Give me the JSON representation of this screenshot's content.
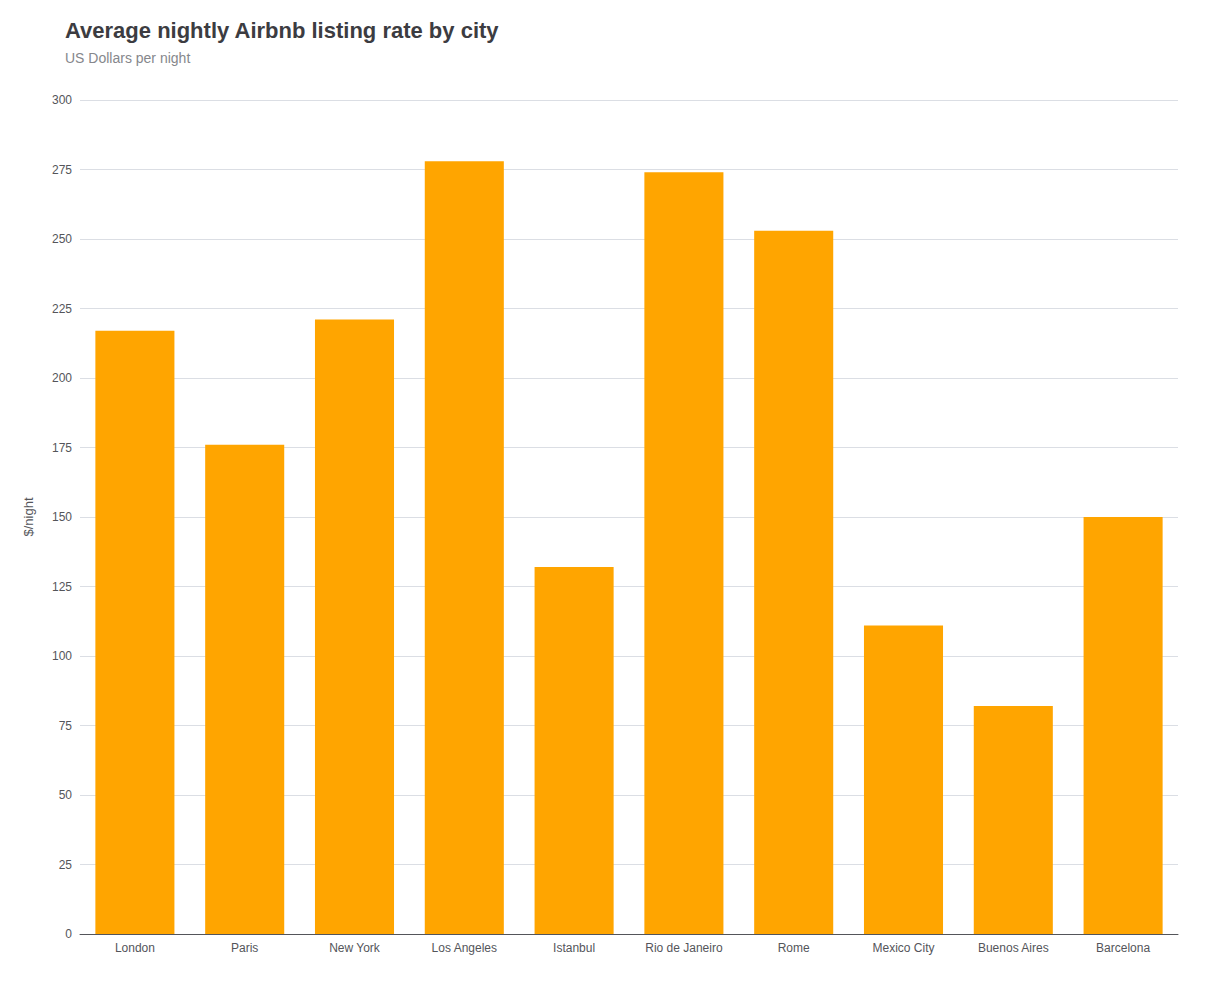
{
  "chart_data": {
    "type": "bar",
    "title": "Average nightly Airbnb listing rate by city",
    "subtitle": "US Dollars per night",
    "ylabel": "$/night",
    "categories": [
      "London",
      "Paris",
      "New York",
      "Los Angeles",
      "Istanbul",
      "Rio de Janeiro",
      "Rome",
      "Mexico City",
      "Buenos Aires",
      "Barcelona"
    ],
    "values": [
      217,
      176,
      221,
      278,
      132,
      274,
      253,
      111,
      82,
      150
    ],
    "color": "#FFA500",
    "ylim": [
      0,
      300
    ],
    "yticks": [
      0,
      25,
      50,
      75,
      100,
      125,
      150,
      175,
      200,
      225,
      250,
      275,
      300
    ],
    "grid": true
  }
}
